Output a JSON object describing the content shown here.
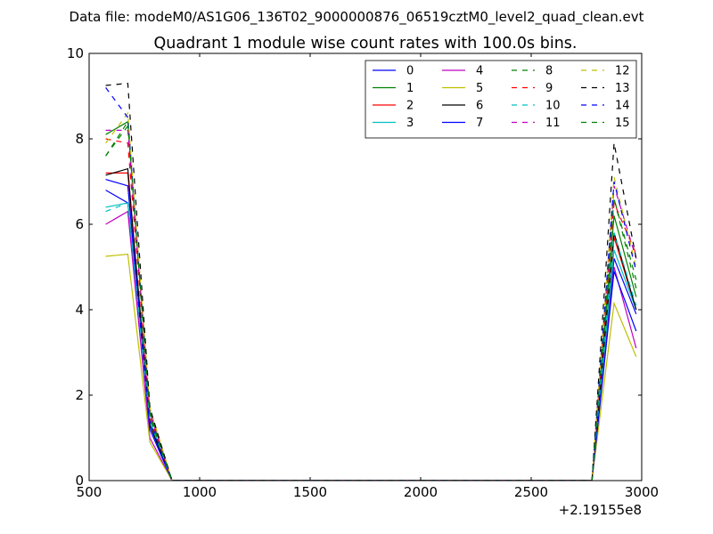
{
  "suptitle": "Data file: modeM0/AS1G06_136T02_9000000876_06519cztM0_level2_quad_clean.evt",
  "chart_data": {
    "type": "line",
    "title": "Quadrant 1 module wise count rates with 100.0s bins.",
    "xlabel": "",
    "ylabel": "",
    "x_offset_label": "+2.19155e8",
    "xlim": [
      500,
      3000
    ],
    "ylim": [
      0,
      10
    ],
    "x_ticks": [
      500,
      1000,
      1500,
      2000,
      2500,
      3000
    ],
    "y_ticks": [
      0,
      2,
      4,
      6,
      8,
      10
    ],
    "grid": false,
    "legend_position": "top-right",
    "legend_columns": 4,
    "x": [
      575,
      675,
      775,
      875,
      975,
      1075,
      1175,
      1275,
      1375,
      1475,
      1575,
      1675,
      1775,
      1875,
      1975,
      2075,
      2175,
      2275,
      2375,
      2475,
      2575,
      2675,
      2775,
      2875,
      2975
    ],
    "series": [
      {
        "name": "0",
        "color": "#0000ff",
        "dash": false,
        "values": [
          6.8,
          6.5,
          1.4,
          0,
          0,
          0,
          0,
          0,
          0,
          0,
          0,
          0,
          0,
          0,
          0,
          0,
          0,
          0,
          0,
          0,
          0,
          0,
          0,
          5.2,
          3.9
        ]
      },
      {
        "name": "1",
        "color": "#008000",
        "dash": false,
        "values": [
          8.1,
          8.4,
          1.6,
          0,
          0,
          0,
          0,
          0,
          0,
          0,
          0,
          0,
          0,
          0,
          0,
          0,
          0,
          0,
          0,
          0,
          0,
          0,
          0,
          6.2,
          4.3
        ]
      },
      {
        "name": "2",
        "color": "#ff0000",
        "dash": false,
        "values": [
          7.2,
          7.2,
          1.3,
          0,
          0,
          0,
          0,
          0,
          0,
          0,
          0,
          0,
          0,
          0,
          0,
          0,
          0,
          0,
          0,
          0,
          0,
          0,
          0,
          5.7,
          4.0
        ]
      },
      {
        "name": "3",
        "color": "#00bfbf",
        "dash": false,
        "values": [
          6.4,
          6.5,
          1.3,
          0,
          0,
          0,
          0,
          0,
          0,
          0,
          0,
          0,
          0,
          0,
          0,
          0,
          0,
          0,
          0,
          0,
          0,
          0,
          0,
          5.4,
          4.0
        ]
      },
      {
        "name": "4",
        "color": "#bf00bf",
        "dash": false,
        "values": [
          6.0,
          6.3,
          1.0,
          0,
          0,
          0,
          0,
          0,
          0,
          0,
          0,
          0,
          0,
          0,
          0,
          0,
          0,
          0,
          0,
          0,
          0,
          0,
          0,
          5.0,
          3.1
        ]
      },
      {
        "name": "5",
        "color": "#bfbf00",
        "dash": false,
        "values": [
          5.25,
          5.3,
          0.9,
          0,
          0,
          0,
          0,
          0,
          0,
          0,
          0,
          0,
          0,
          0,
          0,
          0,
          0,
          0,
          0,
          0,
          0,
          0,
          0,
          4.15,
          2.9
        ]
      },
      {
        "name": "6",
        "color": "#000000",
        "dash": false,
        "values": [
          7.15,
          7.3,
          1.3,
          0,
          0,
          0,
          0,
          0,
          0,
          0,
          0,
          0,
          0,
          0,
          0,
          0,
          0,
          0,
          0,
          0,
          0,
          0,
          0,
          5.8,
          4.0
        ]
      },
      {
        "name": "7",
        "color": "#0000ff",
        "dash": false,
        "values": [
          7.05,
          6.9,
          1.2,
          0,
          0,
          0,
          0,
          0,
          0,
          0,
          0,
          0,
          0,
          0,
          0,
          0,
          0,
          0,
          0,
          0,
          0,
          0,
          0,
          4.9,
          3.5
        ]
      },
      {
        "name": "8",
        "color": "#008000",
        "dash": true,
        "values": [
          7.6,
          8.3,
          1.5,
          0,
          0,
          0,
          0,
          0,
          0,
          0,
          0,
          0,
          0,
          0,
          0,
          0,
          0,
          0,
          0,
          0,
          0,
          0,
          0,
          6.6,
          4.5
        ]
      },
      {
        "name": "9",
        "color": "#ff0000",
        "dash": true,
        "values": [
          8.0,
          7.9,
          1.5,
          0,
          0,
          0,
          0,
          0,
          0,
          0,
          0,
          0,
          0,
          0,
          0,
          0,
          0,
          0,
          0,
          0,
          0,
          0,
          0,
          6.5,
          5.3
        ]
      },
      {
        "name": "10",
        "color": "#00bfbf",
        "dash": true,
        "values": [
          6.3,
          6.5,
          1.4,
          0,
          0,
          0,
          0,
          0,
          0,
          0,
          0,
          0,
          0,
          0,
          0,
          0,
          0,
          0,
          0,
          0,
          0,
          0,
          0,
          5.8,
          4.1
        ]
      },
      {
        "name": "11",
        "color": "#bf00bf",
        "dash": true,
        "values": [
          8.2,
          8.2,
          1.6,
          0,
          0,
          0,
          0,
          0,
          0,
          0,
          0,
          0,
          0,
          0,
          0,
          0,
          0,
          0,
          0,
          0,
          0,
          0,
          0,
          6.9,
          5.2
        ]
      },
      {
        "name": "12",
        "color": "#bfbf00",
        "dash": true,
        "values": [
          7.9,
          8.6,
          1.7,
          0,
          0,
          0,
          0,
          0,
          0,
          0,
          0,
          0,
          0,
          0,
          0,
          0,
          0,
          0,
          0,
          0,
          0,
          0,
          0,
          7.1,
          5.0
        ]
      },
      {
        "name": "13",
        "color": "#000000",
        "dash": true,
        "values": [
          9.25,
          9.3,
          1.7,
          0,
          0,
          0,
          0,
          0,
          0,
          0,
          0,
          0,
          0,
          0,
          0,
          0,
          0,
          0,
          0,
          0,
          0,
          0,
          0,
          7.9,
          5.2
        ]
      },
      {
        "name": "14",
        "color": "#0000ff",
        "dash": true,
        "values": [
          9.2,
          8.5,
          1.5,
          0,
          0,
          0,
          0,
          0,
          0,
          0,
          0,
          0,
          0,
          0,
          0,
          0,
          0,
          0,
          0,
          0,
          0,
          0,
          0,
          7.0,
          4.9
        ]
      },
      {
        "name": "15",
        "color": "#008000",
        "dash": true,
        "values": [
          7.6,
          8.4,
          1.5,
          0,
          0,
          0,
          0,
          0,
          0,
          0,
          0,
          0,
          0,
          0,
          0,
          0,
          0,
          0,
          0,
          0,
          0,
          0,
          0,
          6.6,
          4.7
        ]
      }
    ]
  }
}
